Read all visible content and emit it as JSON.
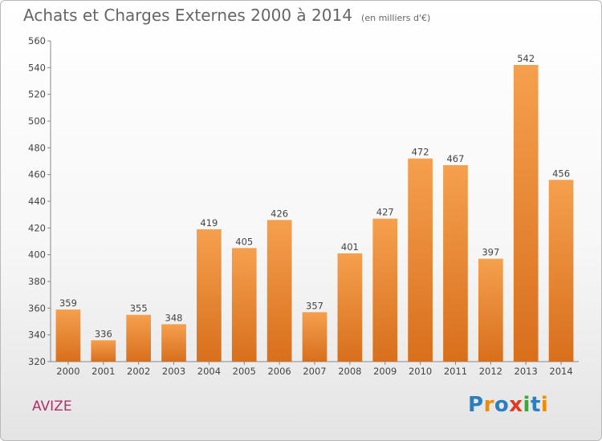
{
  "title": "Achats et Charges Externes 2000 à 2014",
  "unit_note": "(en milliers d'€)",
  "commune": "AVIZE",
  "logo": {
    "text": "Proxiti",
    "letters": [
      "P",
      "r",
      "o",
      "x",
      "i",
      "t",
      "i"
    ],
    "colors": [
      "#2a7fc1",
      "#f08c00",
      "#2a7fc1",
      "#e23a22",
      "#3aaa35",
      "#2a7fc1",
      "#f08c00"
    ]
  },
  "colors": {
    "bar_top": "#f5a04e",
    "bar_bottom": "#d86f1c",
    "title": "#666666",
    "commune": "#b0306a"
  },
  "chart_data": {
    "type": "bar",
    "title": "Achats et Charges Externes 2000 à 2014",
    "subtitle": "(en milliers d'€)",
    "xlabel": "",
    "ylabel": "",
    "categories": [
      "2000",
      "2001",
      "2002",
      "2003",
      "2004",
      "2005",
      "2006",
      "2007",
      "2008",
      "2009",
      "2010",
      "2011",
      "2012",
      "2013",
      "2014"
    ],
    "values": [
      359,
      336,
      355,
      348,
      419,
      405,
      426,
      357,
      401,
      427,
      472,
      467,
      397,
      542,
      456
    ],
    "ylim": [
      320,
      560
    ],
    "yticks": [
      320,
      340,
      360,
      380,
      400,
      420,
      440,
      460,
      480,
      500,
      520,
      540,
      560
    ],
    "grid": false,
    "legend": "none"
  }
}
